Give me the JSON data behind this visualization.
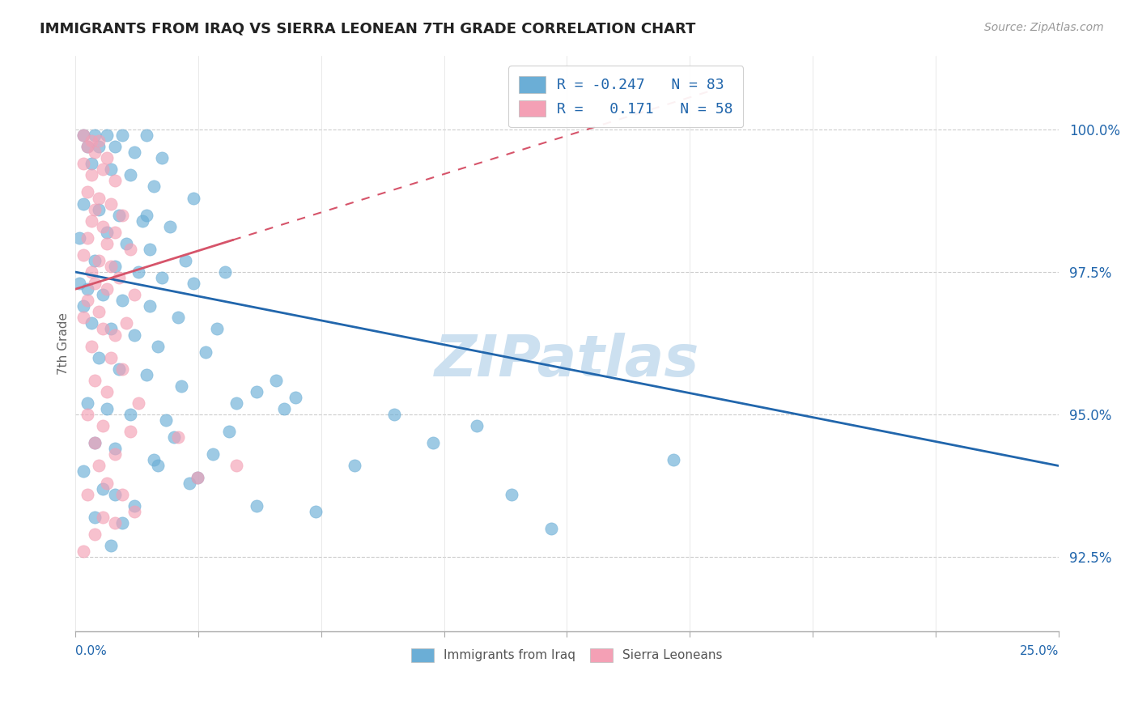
{
  "title": "IMMIGRANTS FROM IRAQ VS SIERRA LEONEAN 7TH GRADE CORRELATION CHART",
  "source_text": "Source: ZipAtlas.com",
  "ylabel": "7th Grade",
  "xlim": [
    0.0,
    25.0
  ],
  "ylim": [
    91.2,
    101.3
  ],
  "yticks": [
    92.5,
    95.0,
    97.5,
    100.0
  ],
  "ytick_labels": [
    "92.5%",
    "95.0%",
    "97.5%",
    "100.0%"
  ],
  "legend_iraq_r": "-0.247",
  "legend_iraq_n": "83",
  "legend_sl_r": "0.171",
  "legend_sl_n": "58",
  "iraq_color": "#6baed6",
  "sl_color": "#f4a0b5",
  "iraq_line_color": "#2166ac",
  "sl_line_color": "#d6546a",
  "watermark_color": "#cce0f0",
  "background_color": "#ffffff",
  "iraq_line_x0": 0.0,
  "iraq_line_y0": 97.5,
  "iraq_line_x1": 25.0,
  "iraq_line_y1": 94.1,
  "sl_line_x0": 0.0,
  "sl_line_y0": 97.2,
  "sl_line_x1": 6.5,
  "sl_line_y1": 98.6,
  "iraq_points": [
    [
      0.2,
      99.9
    ],
    [
      0.5,
      99.9
    ],
    [
      0.8,
      99.9
    ],
    [
      1.2,
      99.9
    ],
    [
      1.8,
      99.9
    ],
    [
      0.3,
      99.7
    ],
    [
      0.6,
      99.7
    ],
    [
      1.0,
      99.7
    ],
    [
      1.5,
      99.6
    ],
    [
      2.2,
      99.5
    ],
    [
      0.4,
      99.4
    ],
    [
      0.9,
      99.3
    ],
    [
      1.4,
      99.2
    ],
    [
      2.0,
      99.0
    ],
    [
      3.0,
      98.8
    ],
    [
      0.2,
      98.7
    ],
    [
      0.6,
      98.6
    ],
    [
      1.1,
      98.5
    ],
    [
      1.7,
      98.4
    ],
    [
      2.4,
      98.3
    ],
    [
      0.8,
      98.2
    ],
    [
      1.3,
      98.0
    ],
    [
      1.9,
      97.9
    ],
    [
      2.8,
      97.7
    ],
    [
      3.8,
      97.5
    ],
    [
      0.5,
      97.7
    ],
    [
      1.0,
      97.6
    ],
    [
      1.6,
      97.5
    ],
    [
      2.2,
      97.4
    ],
    [
      3.0,
      97.3
    ],
    [
      0.3,
      97.2
    ],
    [
      0.7,
      97.1
    ],
    [
      1.2,
      97.0
    ],
    [
      1.9,
      96.9
    ],
    [
      2.6,
      96.7
    ],
    [
      0.4,
      96.6
    ],
    [
      0.9,
      96.5
    ],
    [
      1.5,
      96.4
    ],
    [
      2.1,
      96.2
    ],
    [
      3.3,
      96.1
    ],
    [
      0.6,
      96.0
    ],
    [
      1.1,
      95.8
    ],
    [
      1.8,
      95.7
    ],
    [
      2.7,
      95.5
    ],
    [
      4.6,
      95.4
    ],
    [
      5.6,
      95.3
    ],
    [
      0.3,
      95.2
    ],
    [
      0.8,
      95.1
    ],
    [
      1.4,
      95.0
    ],
    [
      2.3,
      94.9
    ],
    [
      3.9,
      94.7
    ],
    [
      0.5,
      94.5
    ],
    [
      1.0,
      94.4
    ],
    [
      2.0,
      94.2
    ],
    [
      4.1,
      95.2
    ],
    [
      5.3,
      95.1
    ],
    [
      8.1,
      95.0
    ],
    [
      10.2,
      94.8
    ],
    [
      0.2,
      94.0
    ],
    [
      0.7,
      93.7
    ],
    [
      1.5,
      93.4
    ],
    [
      2.9,
      93.8
    ],
    [
      1.2,
      93.1
    ],
    [
      0.9,
      92.7
    ],
    [
      7.1,
      94.1
    ],
    [
      12.1,
      93.0
    ],
    [
      4.6,
      93.4
    ],
    [
      3.1,
      93.9
    ],
    [
      6.1,
      93.3
    ],
    [
      15.2,
      94.2
    ],
    [
      2.1,
      94.1
    ],
    [
      1.8,
      98.5
    ],
    [
      3.6,
      96.5
    ],
    [
      5.1,
      95.6
    ],
    [
      9.1,
      94.5
    ],
    [
      0.1,
      98.1
    ],
    [
      0.1,
      97.3
    ],
    [
      0.2,
      96.9
    ],
    [
      2.5,
      94.6
    ],
    [
      11.1,
      93.6
    ],
    [
      0.5,
      93.2
    ],
    [
      1.0,
      93.6
    ],
    [
      3.5,
      94.3
    ]
  ],
  "sl_points": [
    [
      0.2,
      99.9
    ],
    [
      0.4,
      99.8
    ],
    [
      0.6,
      99.8
    ],
    [
      0.3,
      99.7
    ],
    [
      0.5,
      99.6
    ],
    [
      0.8,
      99.5
    ],
    [
      0.2,
      99.4
    ],
    [
      0.7,
      99.3
    ],
    [
      0.4,
      99.2
    ],
    [
      1.0,
      99.1
    ],
    [
      0.3,
      98.9
    ],
    [
      0.6,
      98.8
    ],
    [
      0.9,
      98.7
    ],
    [
      0.5,
      98.6
    ],
    [
      1.2,
      98.5
    ],
    [
      0.4,
      98.4
    ],
    [
      0.7,
      98.3
    ],
    [
      1.0,
      98.2
    ],
    [
      0.3,
      98.1
    ],
    [
      0.8,
      98.0
    ],
    [
      1.4,
      97.9
    ],
    [
      0.2,
      97.8
    ],
    [
      0.6,
      97.7
    ],
    [
      0.9,
      97.6
    ],
    [
      0.4,
      97.5
    ],
    [
      1.1,
      97.4
    ],
    [
      0.5,
      97.3
    ],
    [
      0.8,
      97.2
    ],
    [
      1.5,
      97.1
    ],
    [
      0.3,
      97.0
    ],
    [
      0.6,
      96.8
    ],
    [
      0.2,
      96.7
    ],
    [
      1.3,
      96.6
    ],
    [
      0.7,
      96.5
    ],
    [
      1.0,
      96.4
    ],
    [
      0.4,
      96.2
    ],
    [
      0.9,
      96.0
    ],
    [
      1.2,
      95.8
    ],
    [
      0.5,
      95.6
    ],
    [
      0.8,
      95.4
    ],
    [
      1.6,
      95.2
    ],
    [
      0.3,
      95.0
    ],
    [
      0.7,
      94.8
    ],
    [
      1.4,
      94.7
    ],
    [
      0.5,
      94.5
    ],
    [
      1.0,
      94.3
    ],
    [
      0.6,
      94.1
    ],
    [
      2.6,
      94.6
    ],
    [
      0.3,
      93.6
    ],
    [
      0.8,
      93.8
    ],
    [
      1.5,
      93.3
    ],
    [
      4.1,
      94.1
    ],
    [
      0.5,
      92.9
    ],
    [
      0.2,
      92.6
    ],
    [
      1.0,
      93.1
    ],
    [
      3.1,
      93.9
    ],
    [
      0.7,
      93.2
    ],
    [
      1.2,
      93.6
    ]
  ]
}
